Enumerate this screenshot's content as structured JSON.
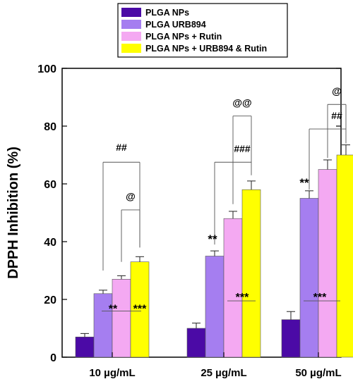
{
  "chart_data": {
    "type": "bar",
    "title": "",
    "xlabel": "",
    "ylabel": "DPPH Inhibition (%)",
    "ylim": [
      0,
      100
    ],
    "yticks": [
      0,
      20,
      40,
      60,
      80,
      100
    ],
    "categories": [
      "10 µg/mL",
      "25 µg/mL",
      "50 µg/mL"
    ],
    "series": [
      {
        "name": "PLGA NPs",
        "color": "#4b0aa6",
        "values": [
          7,
          10,
          13
        ],
        "errors": [
          1.2,
          1.8,
          2.8
        ]
      },
      {
        "name": "PLGA URB894",
        "color": "#a57ef0",
        "values": [
          22,
          35,
          55
        ],
        "errors": [
          1.2,
          1.8,
          2.6
        ]
      },
      {
        "name": "PLGA NPs + Rutin",
        "color": "#f4a9f2",
        "values": [
          27,
          48,
          65
        ],
        "errors": [
          1.2,
          2.5,
          3.3
        ]
      },
      {
        "name": "PLGA NPs + URB894 & Rutin",
        "color": "#ffff00",
        "values": [
          33,
          58,
          70
        ],
        "errors": [
          1.8,
          3.0,
          3.5
        ]
      }
    ],
    "legend_position": "top",
    "grid": false,
    "annotations": [
      {
        "text": "##",
        "category": 0
      },
      {
        "text": "@",
        "category": 0
      },
      {
        "text": "**",
        "category": 0
      },
      {
        "text": "***",
        "category": 0
      },
      {
        "text": "@@",
        "category": 1
      },
      {
        "text": "###",
        "category": 1
      },
      {
        "text": "**",
        "category": 1
      },
      {
        "text": "***",
        "category": 1
      },
      {
        "text": "@",
        "category": 2
      },
      {
        "text": "##",
        "category": 2
      },
      {
        "text": "**",
        "category": 2
      },
      {
        "text": "***",
        "category": 2
      }
    ]
  }
}
